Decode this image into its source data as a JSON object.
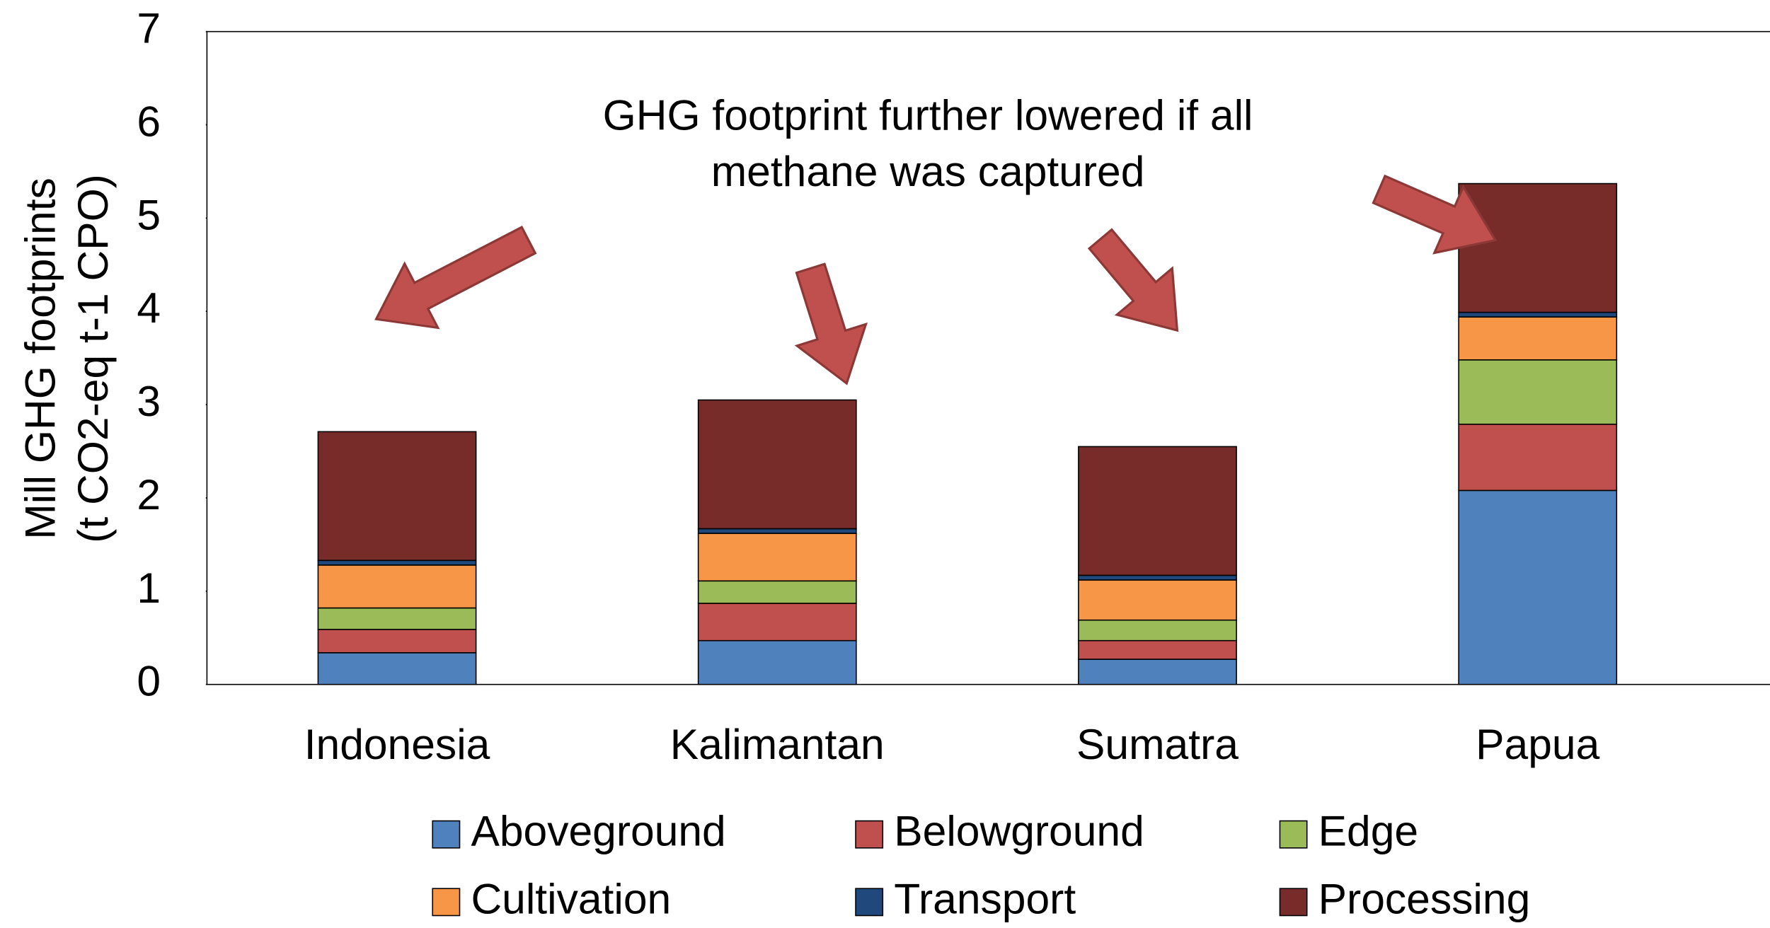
{
  "chart_data": {
    "type": "stacked_bar",
    "ylabel": [
      "Mill GHG footprints",
      "(t CO2-eq t-1 CPO)"
    ],
    "annotation": [
      "GHG footprint further lowered if all",
      "methane was captured"
    ],
    "categories": [
      "Indonesia",
      "Kalimantan",
      "Sumatra",
      "Papua"
    ],
    "series": [
      {
        "name": "Aboveground",
        "color": "#4f81bd",
        "values": [
          0.34,
          0.47,
          0.27,
          2.08
        ]
      },
      {
        "name": "Belowground",
        "color": "#c0504d",
        "values": [
          0.25,
          0.4,
          0.2,
          0.71
        ]
      },
      {
        "name": "Edge",
        "color": "#9bbb59",
        "values": [
          0.23,
          0.24,
          0.22,
          0.69
        ]
      },
      {
        "name": "Cultivation",
        "color": "#f79646",
        "values": [
          0.46,
          0.51,
          0.43,
          0.46
        ]
      },
      {
        "name": "Transport",
        "color": "#1f497d",
        "values": [
          0.05,
          0.05,
          0.05,
          0.05
        ]
      },
      {
        "name": "Processing",
        "color": "#772c2a",
        "values": [
          1.38,
          1.38,
          1.38,
          1.38
        ]
      }
    ],
    "ylim": [
      0,
      7
    ],
    "yticks": [
      0,
      1,
      2,
      3,
      4,
      5,
      6,
      7
    ],
    "grid": false,
    "legend": "bottom"
  }
}
